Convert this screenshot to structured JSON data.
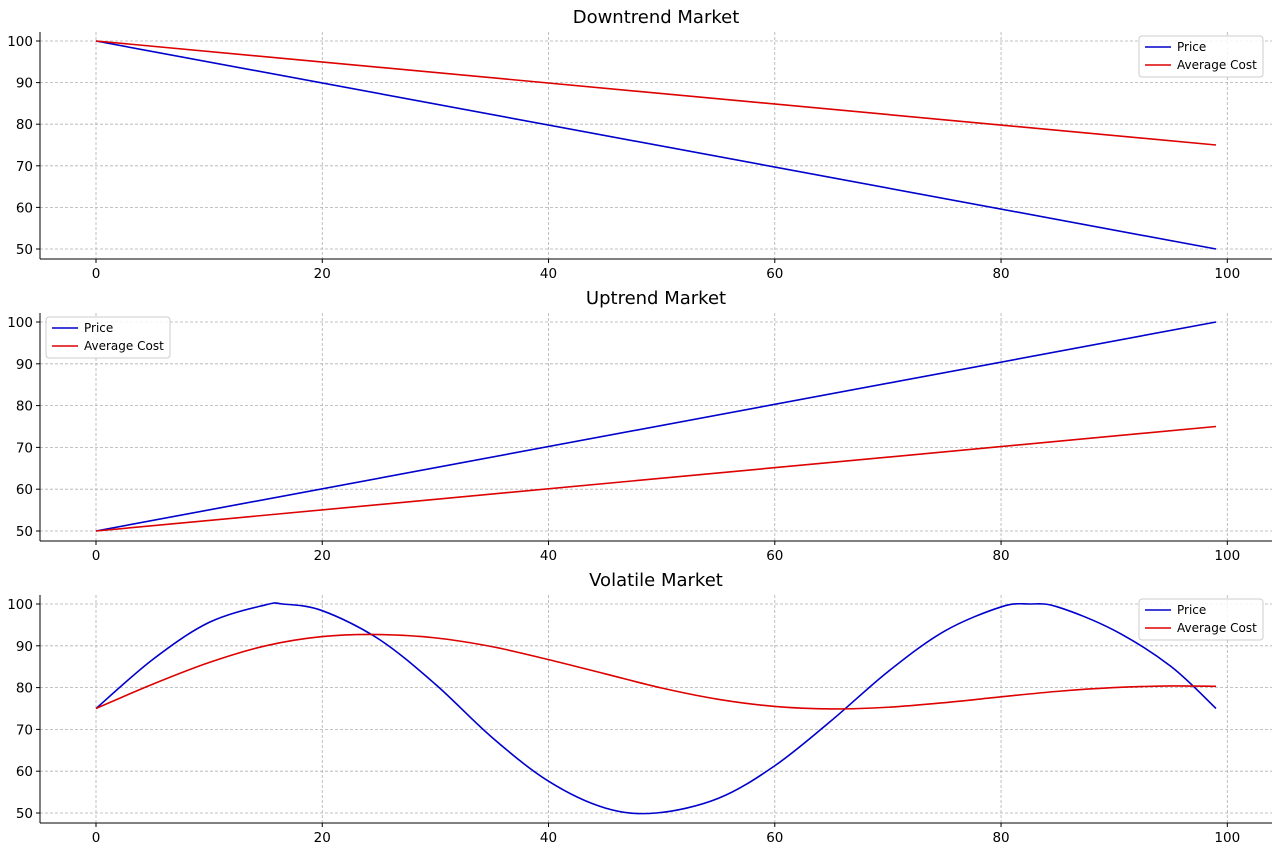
{
  "chart_data": [
    {
      "type": "line",
      "title": "Downtrend Market",
      "xlim": [
        -5,
        104
      ],
      "ylim": [
        47.5,
        102.5
      ],
      "xticks": [
        0,
        20,
        40,
        60,
        80,
        100
      ],
      "yticks": [
        50,
        60,
        70,
        80,
        90,
        100
      ],
      "grid": true,
      "legend": "top-right",
      "series": [
        {
          "name": "Price",
          "color": "#0000cc",
          "x": [
            0,
            99
          ],
          "y": [
            100,
            50
          ]
        },
        {
          "name": "Average Cost",
          "color": "#dd0000",
          "x": [
            0,
            99
          ],
          "y": [
            100,
            75
          ]
        }
      ]
    },
    {
      "type": "line",
      "title": "Uptrend Market",
      "xlim": [
        -5,
        104
      ],
      "ylim": [
        47.5,
        102.5
      ],
      "xticks": [
        0,
        20,
        40,
        60,
        80,
        100
      ],
      "yticks": [
        50,
        60,
        70,
        80,
        90,
        100
      ],
      "grid": true,
      "legend": "top-left",
      "series": [
        {
          "name": "Price",
          "color": "#0000cc",
          "x": [
            0,
            99
          ],
          "y": [
            50,
            100
          ]
        },
        {
          "name": "Average Cost",
          "color": "#dd0000",
          "x": [
            0,
            99
          ],
          "y": [
            50,
            75
          ]
        }
      ]
    },
    {
      "type": "line",
      "title": "Volatile Market",
      "xlim": [
        -5,
        104
      ],
      "ylim": [
        47.5,
        102.5
      ],
      "xticks": [
        0,
        20,
        40,
        60,
        80,
        100
      ],
      "yticks": [
        50,
        60,
        70,
        80,
        90,
        100
      ],
      "grid": true,
      "legend": "top-right",
      "series": [
        {
          "name": "Price",
          "color": "#0000cc",
          "x": [
            0,
            5,
            10,
            15,
            16.5,
            20,
            25,
            30,
            35,
            40,
            45,
            49.5,
            55,
            60,
            65,
            70,
            75,
            80,
            82.5,
            85,
            90,
            95,
            99
          ],
          "y": [
            75,
            86.7,
            95.6,
            99.8,
            100,
            98.4,
            91.6,
            80.8,
            68.1,
            57.6,
            51.2,
            50,
            53.5,
            61.3,
            72.1,
            83.8,
            93.5,
            99.3,
            100,
            99.3,
            93.7,
            85.1,
            75
          ]
        },
        {
          "name": "Average Cost",
          "color": "#dd0000",
          "x": [
            0,
            5,
            10,
            15,
            20,
            25,
            30,
            35,
            40,
            45,
            50,
            55,
            60,
            65,
            70,
            75,
            80,
            85,
            90,
            95,
            99
          ],
          "y": [
            75,
            80.8,
            86,
            90,
            92.2,
            92.7,
            91.9,
            89.8,
            86.7,
            83.3,
            79.9,
            77.2,
            75.5,
            74.9,
            75.3,
            76.4,
            77.8,
            79.1,
            80,
            80.4,
            80.3
          ]
        }
      ]
    }
  ]
}
